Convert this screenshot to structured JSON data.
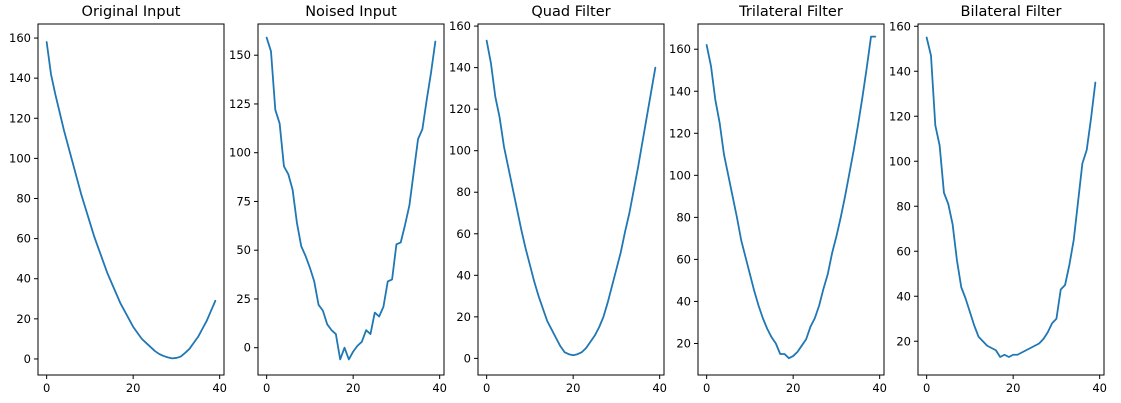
{
  "colors": {
    "series": "#1f77b4"
  },
  "chart_data": [
    {
      "type": "line",
      "title": "Original Input",
      "xlim": [
        -2,
        41
      ],
      "ylim": [
        -8,
        167
      ],
      "xticks": [
        0,
        20,
        40
      ],
      "yticks": [
        0,
        20,
        40,
        60,
        80,
        100,
        120,
        140,
        160
      ],
      "x": [
        0,
        1,
        2,
        3,
        4,
        5,
        6,
        7,
        8,
        9,
        10,
        11,
        12,
        13,
        14,
        15,
        16,
        17,
        18,
        19,
        20,
        21,
        22,
        23,
        24,
        25,
        26,
        27,
        28,
        29,
        30,
        31,
        32,
        33,
        34,
        35,
        36,
        37,
        38,
        39
      ],
      "y": [
        158,
        142,
        132,
        123,
        114,
        106,
        98,
        90,
        82,
        75,
        68,
        61,
        55,
        49,
        43,
        38,
        33,
        28,
        24,
        20,
        16,
        13,
        10,
        8,
        6,
        4,
        2.5,
        1.5,
        0.8,
        0.3,
        0.5,
        1.2,
        3,
        5,
        8,
        11,
        15,
        19,
        24,
        29
      ]
    },
    {
      "type": "line",
      "title": "Noised Input",
      "xlim": [
        -2,
        41
      ],
      "ylim": [
        -14,
        166
      ],
      "xticks": [
        0,
        20,
        40
      ],
      "yticks": [
        0,
        25,
        50,
        75,
        100,
        125,
        150
      ],
      "x": [
        0,
        1,
        2,
        3,
        4,
        5,
        6,
        7,
        8,
        9,
        10,
        11,
        12,
        13,
        14,
        15,
        16,
        17,
        18,
        19,
        20,
        21,
        22,
        23,
        24,
        25,
        26,
        27,
        28,
        29,
        30,
        31,
        32,
        33,
        34,
        35,
        36,
        37,
        38,
        39
      ],
      "y": [
        159,
        152,
        122,
        115,
        93,
        89,
        81,
        64,
        52,
        47,
        41,
        34,
        22,
        19,
        12,
        9,
        7,
        -6,
        0,
        -6,
        -2,
        1,
        3,
        9,
        7,
        18,
        16,
        21,
        34,
        35,
        53,
        54,
        63,
        73,
        90,
        107,
        112,
        127,
        141,
        157
      ]
    },
    {
      "type": "line",
      "title": "Quad Filter",
      "xlim": [
        -2,
        41
      ],
      "ylim": [
        -8,
        161
      ],
      "xticks": [
        0,
        20,
        40
      ],
      "yticks": [
        0,
        20,
        40,
        60,
        80,
        100,
        120,
        140,
        160
      ],
      "x": [
        0,
        1,
        2,
        3,
        4,
        5,
        6,
        7,
        8,
        9,
        10,
        11,
        12,
        13,
        14,
        15,
        16,
        17,
        18,
        19,
        20,
        21,
        22,
        23,
        24,
        25,
        26,
        27,
        28,
        29,
        30,
        31,
        32,
        33,
        34,
        35,
        36,
        37,
        38,
        39
      ],
      "y": [
        153,
        142,
        126,
        116,
        102,
        92,
        82,
        72,
        62,
        53,
        45,
        37,
        30,
        24,
        18,
        14,
        10,
        6,
        3,
        2,
        1.5,
        2,
        3,
        5,
        8,
        11,
        15,
        20,
        27,
        35,
        43,
        51,
        61,
        70,
        81,
        92,
        104,
        116,
        128,
        140
      ]
    },
    {
      "type": "line",
      "title": "Trilateral Filter",
      "xlim": [
        -2,
        41
      ],
      "ylim": [
        5,
        172
      ],
      "xticks": [
        0,
        20,
        40
      ],
      "yticks": [
        20,
        40,
        60,
        80,
        100,
        120,
        140,
        160
      ],
      "x": [
        0,
        1,
        2,
        3,
        4,
        5,
        6,
        7,
        8,
        9,
        10,
        11,
        12,
        13,
        14,
        15,
        16,
        17,
        18,
        19,
        20,
        21,
        22,
        23,
        24,
        25,
        26,
        27,
        28,
        29,
        30,
        31,
        32,
        33,
        34,
        35,
        36,
        37,
        38,
        39
      ],
      "y": [
        162,
        152,
        136,
        125,
        110,
        100,
        90,
        80,
        69,
        61,
        53,
        45,
        38,
        32,
        27,
        23,
        20,
        15,
        15,
        13,
        14,
        16,
        19,
        22,
        28,
        32,
        38,
        46,
        53,
        63,
        71,
        80,
        90,
        101,
        112,
        124,
        137,
        151,
        166,
        166
      ]
    },
    {
      "type": "line",
      "title": "Bilateral Filter",
      "xlim": [
        -2,
        41
      ],
      "ylim": [
        5,
        161
      ],
      "xticks": [
        0,
        20,
        40
      ],
      "yticks": [
        20,
        40,
        60,
        80,
        100,
        120,
        140,
        160
      ],
      "x": [
        0,
        1,
        2,
        3,
        4,
        5,
        6,
        7,
        8,
        9,
        10,
        11,
        12,
        13,
        14,
        15,
        16,
        17,
        18,
        19,
        20,
        21,
        22,
        23,
        24,
        25,
        26,
        27,
        28,
        29,
        30,
        31,
        32,
        33,
        34,
        35,
        36,
        37,
        38,
        39
      ],
      "y": [
        155,
        147,
        116,
        107,
        86,
        81,
        72,
        56,
        44,
        39,
        33,
        27,
        22,
        20,
        18,
        17,
        16,
        13,
        14,
        13,
        14,
        14,
        15,
        16,
        17,
        18,
        19,
        21,
        24,
        28,
        30,
        43,
        45,
        54,
        65,
        82,
        99,
        105,
        119,
        135
      ]
    }
  ]
}
